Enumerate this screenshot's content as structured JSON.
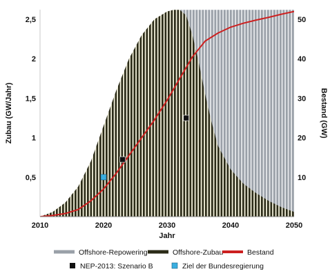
{
  "chart_data": {
    "type": "area",
    "x_label": "Jahr",
    "y_left_label": "Zubau (GW/Jahr)",
    "y_right_label": "Bestand (GW)",
    "x_range": [
      2010,
      2050
    ],
    "y_left_range": [
      0,
      2.5
    ],
    "y_right_range": [
      0,
      50
    ],
    "x_ticks": [
      "2010",
      "2020",
      "2030",
      "2040",
      "2050"
    ],
    "y_left_ticks": [
      "0,5",
      "1",
      "1,5",
      "2",
      "2,5"
    ],
    "y_right_ticks": [
      "10",
      "20",
      "30",
      "40",
      "50"
    ],
    "series": [
      {
        "name": "Offshore-Zubau",
        "kind": "area",
        "axis": "left",
        "color": "#2b2b18",
        "x": [
          2010,
          2012,
          2014,
          2016,
          2018,
          2020,
          2022,
          2024,
          2026,
          2028,
          2030,
          2031,
          2032,
          2033,
          2034,
          2035,
          2036,
          2037,
          2038,
          2040,
          2042,
          2044,
          2046,
          2048,
          2050
        ],
        "y": [
          0,
          0.06,
          0.18,
          0.38,
          0.7,
          1.15,
          1.6,
          2.0,
          2.3,
          2.5,
          2.6,
          2.62,
          2.62,
          2.55,
          2.3,
          1.95,
          1.55,
          1.2,
          0.9,
          0.6,
          0.42,
          0.3,
          0.2,
          0.12,
          0.06
        ]
      },
      {
        "name": "Offshore-Repowering",
        "kind": "area",
        "axis": "left",
        "color": "#9aa0a8",
        "x": [
          2032,
          2034,
          2036,
          2040,
          2045,
          2050
        ],
        "y": [
          2.62,
          2.62,
          2.62,
          2.62,
          2.62,
          2.62
        ]
      },
      {
        "name": "Bestand",
        "kind": "line",
        "axis": "right",
        "color": "#cc1f1f",
        "x": [
          2010,
          2012,
          2014,
          2016,
          2018,
          2020,
          2022,
          2024,
          2026,
          2028,
          2030,
          2032,
          2034,
          2036,
          2038,
          2040,
          2042,
          2044,
          2046,
          2048,
          2050
        ],
        "y": [
          0,
          0.3,
          0.8,
          1.8,
          4.0,
          7.0,
          11.0,
          15.5,
          20.0,
          24.5,
          29.5,
          35.0,
          40.5,
          44.5,
          46.5,
          48.0,
          49.0,
          49.8,
          50.5,
          51.3,
          52.0
        ]
      },
      {
        "name": "NEP-2013: Szenario B",
        "kind": "marker",
        "axis": "right",
        "color": "#111111",
        "x": [
          2023,
          2033
        ],
        "y": [
          14.5,
          25.0
        ]
      },
      {
        "name": "Ziel der Bundesregierung",
        "kind": "marker",
        "axis": "right",
        "color": "#3aaee0",
        "x": [
          2020
        ],
        "y": [
          10.0
        ]
      }
    ],
    "legend_position": "bottom",
    "grid": false
  }
}
